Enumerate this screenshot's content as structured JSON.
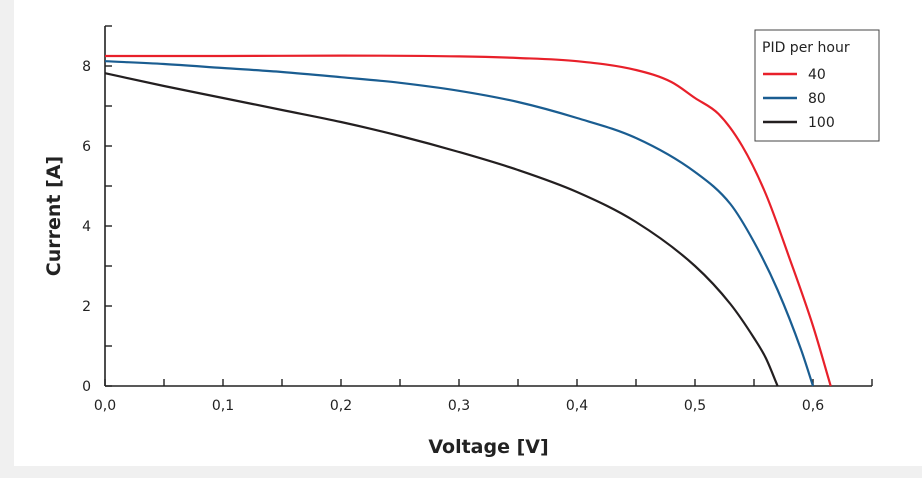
{
  "chart_data": {
    "type": "line",
    "xlabel": "Voltage [V]",
    "ylabel": "Current [A]",
    "xlim": [
      0,
      0.65
    ],
    "ylim": [
      0,
      9
    ],
    "x_ticks": [
      0,
      0.1,
      0.2,
      0.3,
      0.4,
      0.5,
      0.6
    ],
    "x_tick_labels": [
      "0,0",
      "0,1",
      "0,2",
      "0,3",
      "0,4",
      "0,5",
      "0,6"
    ],
    "y_ticks": [
      0,
      2,
      4,
      6,
      8
    ],
    "y_tick_labels": [
      "0",
      "2",
      "4",
      "6",
      "8"
    ],
    "grid": false,
    "legend": {
      "title": "PID per hour",
      "placement": "top-right"
    },
    "series": [
      {
        "name": "40",
        "color": "#e8202a",
        "x": [
          0,
          0.1,
          0.2,
          0.3,
          0.35,
          0.4,
          0.45,
          0.48,
          0.5,
          0.52,
          0.54,
          0.56,
          0.58,
          0.6,
          0.615
        ],
        "y": [
          8.25,
          8.25,
          8.26,
          8.24,
          8.2,
          8.12,
          7.9,
          7.6,
          7.2,
          6.8,
          6.0,
          4.8,
          3.2,
          1.5,
          0
        ]
      },
      {
        "name": "80",
        "color": "#1a5d91",
        "x": [
          0,
          0.05,
          0.1,
          0.15,
          0.2,
          0.25,
          0.3,
          0.35,
          0.4,
          0.45,
          0.5,
          0.53,
          0.55,
          0.57,
          0.59,
          0.6
        ],
        "y": [
          8.12,
          8.05,
          7.95,
          7.85,
          7.72,
          7.58,
          7.38,
          7.1,
          6.7,
          6.2,
          5.35,
          4.55,
          3.6,
          2.4,
          0.9,
          0
        ]
      },
      {
        "name": "100",
        "color": "#231f20",
        "x": [
          0,
          0.05,
          0.1,
          0.15,
          0.2,
          0.25,
          0.3,
          0.35,
          0.4,
          0.45,
          0.5,
          0.53,
          0.55,
          0.56,
          0.57
        ],
        "y": [
          7.82,
          7.5,
          7.2,
          6.9,
          6.6,
          6.25,
          5.85,
          5.4,
          4.85,
          4.1,
          3.0,
          2.05,
          1.2,
          0.7,
          0
        ]
      }
    ]
  }
}
